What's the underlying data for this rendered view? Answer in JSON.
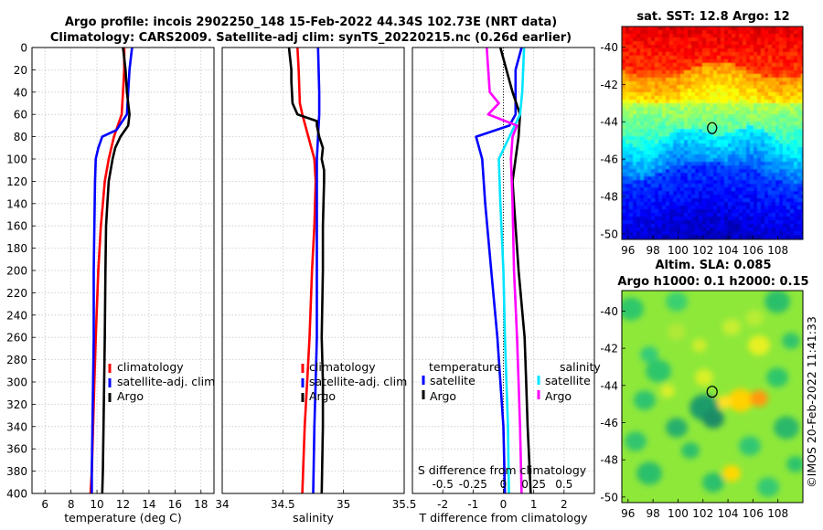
{
  "titles": {
    "line1": "Argo profile: incois 2902250_148 15-Feb-2022 44.34S 102.73E (NRT data)",
    "line2": "Climatology: CARS2009. Satellite-adj clim: synTS_20220215.nc (0.26d earlier)"
  },
  "colors": {
    "climatology": "#ff0000",
    "satellite": "#0000ff",
    "argo": "#000000",
    "sat_t": "#00e5ff",
    "sat_s": "#ff00ff"
  },
  "chart_data": [
    {
      "type": "line",
      "id": "temperature",
      "xlabel": "temperature (deg C)",
      "ylabel": "",
      "xlim": [
        5,
        19
      ],
      "ylim": [
        0,
        400
      ],
      "xticks": [
        "6",
        "8",
        "10",
        "12",
        "14",
        "16",
        "18"
      ],
      "xtick_values": [
        6,
        8,
        10,
        12,
        14,
        16,
        18
      ],
      "yticks": [
        "0",
        "20",
        "40",
        "60",
        "80",
        "100",
        "120",
        "140",
        "160",
        "180",
        "200",
        "220",
        "240",
        "260",
        "280",
        "300",
        "320",
        "340",
        "360",
        "380",
        "400"
      ],
      "legend": [
        "climatology",
        "satellite-adj. clim",
        "Argo"
      ],
      "series": [
        {
          "name": "climatology",
          "color": "#ff0000",
          "depth": [
            0,
            20,
            40,
            60,
            80,
            100,
            120,
            140,
            160,
            200,
            260,
            300,
            340,
            380,
            400
          ],
          "values": [
            12.1,
            12.1,
            12.0,
            11.9,
            11.3,
            10.9,
            10.6,
            10.45,
            10.3,
            10.1,
            9.9,
            9.8,
            9.7,
            9.6,
            9.5
          ]
        },
        {
          "name": "satellite-adj. clim",
          "color": "#0000ff",
          "depth": [
            0,
            20,
            40,
            60,
            74,
            80,
            90,
            100,
            120,
            160,
            200,
            260,
            300,
            340,
            380,
            400
          ],
          "values": [
            12.7,
            12.5,
            12.4,
            12.3,
            11.5,
            10.4,
            10.1,
            9.9,
            9.85,
            9.8,
            9.75,
            9.75,
            9.7,
            9.65,
            9.6,
            9.6
          ]
        },
        {
          "name": "Argo",
          "color": "#000000",
          "depth": [
            0,
            20,
            40,
            60,
            70,
            80,
            90,
            100,
            120,
            140,
            160,
            200,
            260,
            300,
            340,
            380,
            400
          ],
          "values": [
            12.0,
            12.2,
            12.3,
            12.5,
            12.4,
            11.8,
            11.4,
            11.2,
            10.9,
            10.8,
            10.7,
            10.65,
            10.6,
            10.55,
            10.5,
            10.45,
            10.4
          ]
        }
      ]
    },
    {
      "type": "line",
      "id": "salinity",
      "xlabel": "salinity",
      "xlim": [
        34.0,
        35.5
      ],
      "ylim": [
        0,
        400
      ],
      "xticks": [
        "34",
        "34.5",
        "35",
        "35.5"
      ],
      "xtick_values": [
        34.0,
        34.5,
        35.0,
        35.5
      ],
      "legend": [
        "climatology",
        "satellite-adj. clim",
        "Argo"
      ],
      "series": [
        {
          "name": "climatology",
          "color": "#ff0000",
          "depth": [
            0,
            20,
            50,
            60,
            80,
            100,
            120,
            160,
            200,
            260,
            300,
            340,
            400
          ],
          "values": [
            34.62,
            34.63,
            34.64,
            34.66,
            34.71,
            34.76,
            34.77,
            34.76,
            34.74,
            34.72,
            34.7,
            34.68,
            34.66
          ]
        },
        {
          "name": "satellite-adj. clim",
          "color": "#0000ff",
          "depth": [
            0,
            40,
            60,
            80,
            100,
            140,
            200,
            260,
            300,
            340,
            400
          ],
          "values": [
            34.79,
            34.8,
            34.8,
            34.79,
            34.78,
            34.78,
            34.78,
            34.78,
            34.77,
            34.76,
            34.75
          ]
        },
        {
          "name": "Argo",
          "color": "#000000",
          "depth": [
            0,
            10,
            20,
            30,
            50,
            60,
            66,
            70,
            80,
            90,
            100,
            110,
            120,
            160,
            200,
            260,
            300,
            340,
            400
          ],
          "values": [
            34.55,
            34.56,
            34.57,
            34.57,
            34.58,
            34.62,
            34.78,
            34.78,
            34.8,
            34.83,
            34.82,
            34.84,
            34.84,
            34.83,
            34.83,
            34.82,
            34.83,
            34.83,
            34.82
          ]
        }
      ]
    },
    {
      "type": "line",
      "id": "difference",
      "xlabel": "T difference from climatology",
      "secondary_xlabel": "S difference from climatology",
      "xlim": [
        -3,
        3
      ],
      "ylim": [
        0,
        400
      ],
      "xticks": [
        "-2",
        "-1",
        "0",
        "1",
        "2"
      ],
      "xtick_values": [
        -2,
        -1,
        0,
        1,
        2
      ],
      "secondary_xticks": [
        "-0.5",
        "-0.25",
        "0",
        "0.25",
        "0.5"
      ],
      "legend_temperature_title": "temperature",
      "legend_salinity_title": "salinity",
      "legend_temperature": [
        "satellite",
        "Argo"
      ],
      "legend_salinity": [
        "satellite",
        "Argo"
      ],
      "series": [
        {
          "name": "T satellite",
          "color": "#0000ff",
          "depth": [
            0,
            20,
            40,
            60,
            70,
            80,
            100,
            140,
            200,
            260,
            300,
            340,
            400
          ],
          "values": [
            0.6,
            0.4,
            0.4,
            0.4,
            0.2,
            -0.9,
            -0.7,
            -0.6,
            -0.4,
            -0.2,
            -0.1,
            0.0,
            0.05
          ]
        },
        {
          "name": "T Argo",
          "color": "#000000",
          "depth": [
            0,
            20,
            40,
            60,
            80,
            100,
            120,
            140,
            200,
            260,
            300,
            340,
            400
          ],
          "values": [
            -0.1,
            0.1,
            0.3,
            0.55,
            0.5,
            0.4,
            0.3,
            0.35,
            0.5,
            0.7,
            0.75,
            0.8,
            0.9
          ]
        },
        {
          "name": "S satellite",
          "color": "#00e5ff",
          "depth": [
            0,
            40,
            60,
            80,
            100,
            140,
            200,
            260,
            300,
            340,
            400
          ],
          "values": [
            0.68,
            0.62,
            0.55,
            0.2,
            -0.15,
            -0.1,
            0.0,
            0.05,
            0.1,
            0.15,
            0.18
          ]
        },
        {
          "name": "S Argo",
          "color": "#ff00ff",
          "depth": [
            0,
            20,
            40,
            50,
            60,
            70,
            80,
            100,
            140,
            200,
            260,
            300,
            340,
            400
          ],
          "values": [
            -0.55,
            -0.5,
            -0.45,
            -0.15,
            -0.5,
            0.45,
            0.3,
            0.25,
            0.3,
            0.35,
            0.45,
            0.5,
            0.55,
            0.6
          ]
        }
      ]
    },
    {
      "type": "heatmap",
      "id": "sst-map",
      "title": "sat. SST: 12.8 Argo: 12",
      "xticks": [
        "96",
        "98",
        "100",
        "102",
        "104",
        "106",
        "108"
      ],
      "yticks": [
        "-40",
        "-42",
        "-44",
        "-46",
        "-48",
        "-50"
      ],
      "xlim": [
        95.5,
        110
      ],
      "ylim": [
        -50.3,
        -38.9
      ],
      "marker": [
        102.73,
        -44.34
      ]
    },
    {
      "type": "heatmap",
      "id": "sla-map",
      "title_line1": "Altim. SLA: 0.085",
      "title_line2": "Argo h1000: 0.1 h2000: 0.15",
      "xticks": [
        "96",
        "98",
        "100",
        "102",
        "104",
        "106",
        "108"
      ],
      "yticks": [
        "-40",
        "-42",
        "-44",
        "-46",
        "-48",
        "-50"
      ],
      "xlim": [
        95.5,
        110
      ],
      "ylim": [
        -50.3,
        -38.9
      ],
      "marker": [
        102.73,
        -44.34
      ]
    }
  ],
  "credit": "©IMOS 20-Feb-2022 11:41:33"
}
